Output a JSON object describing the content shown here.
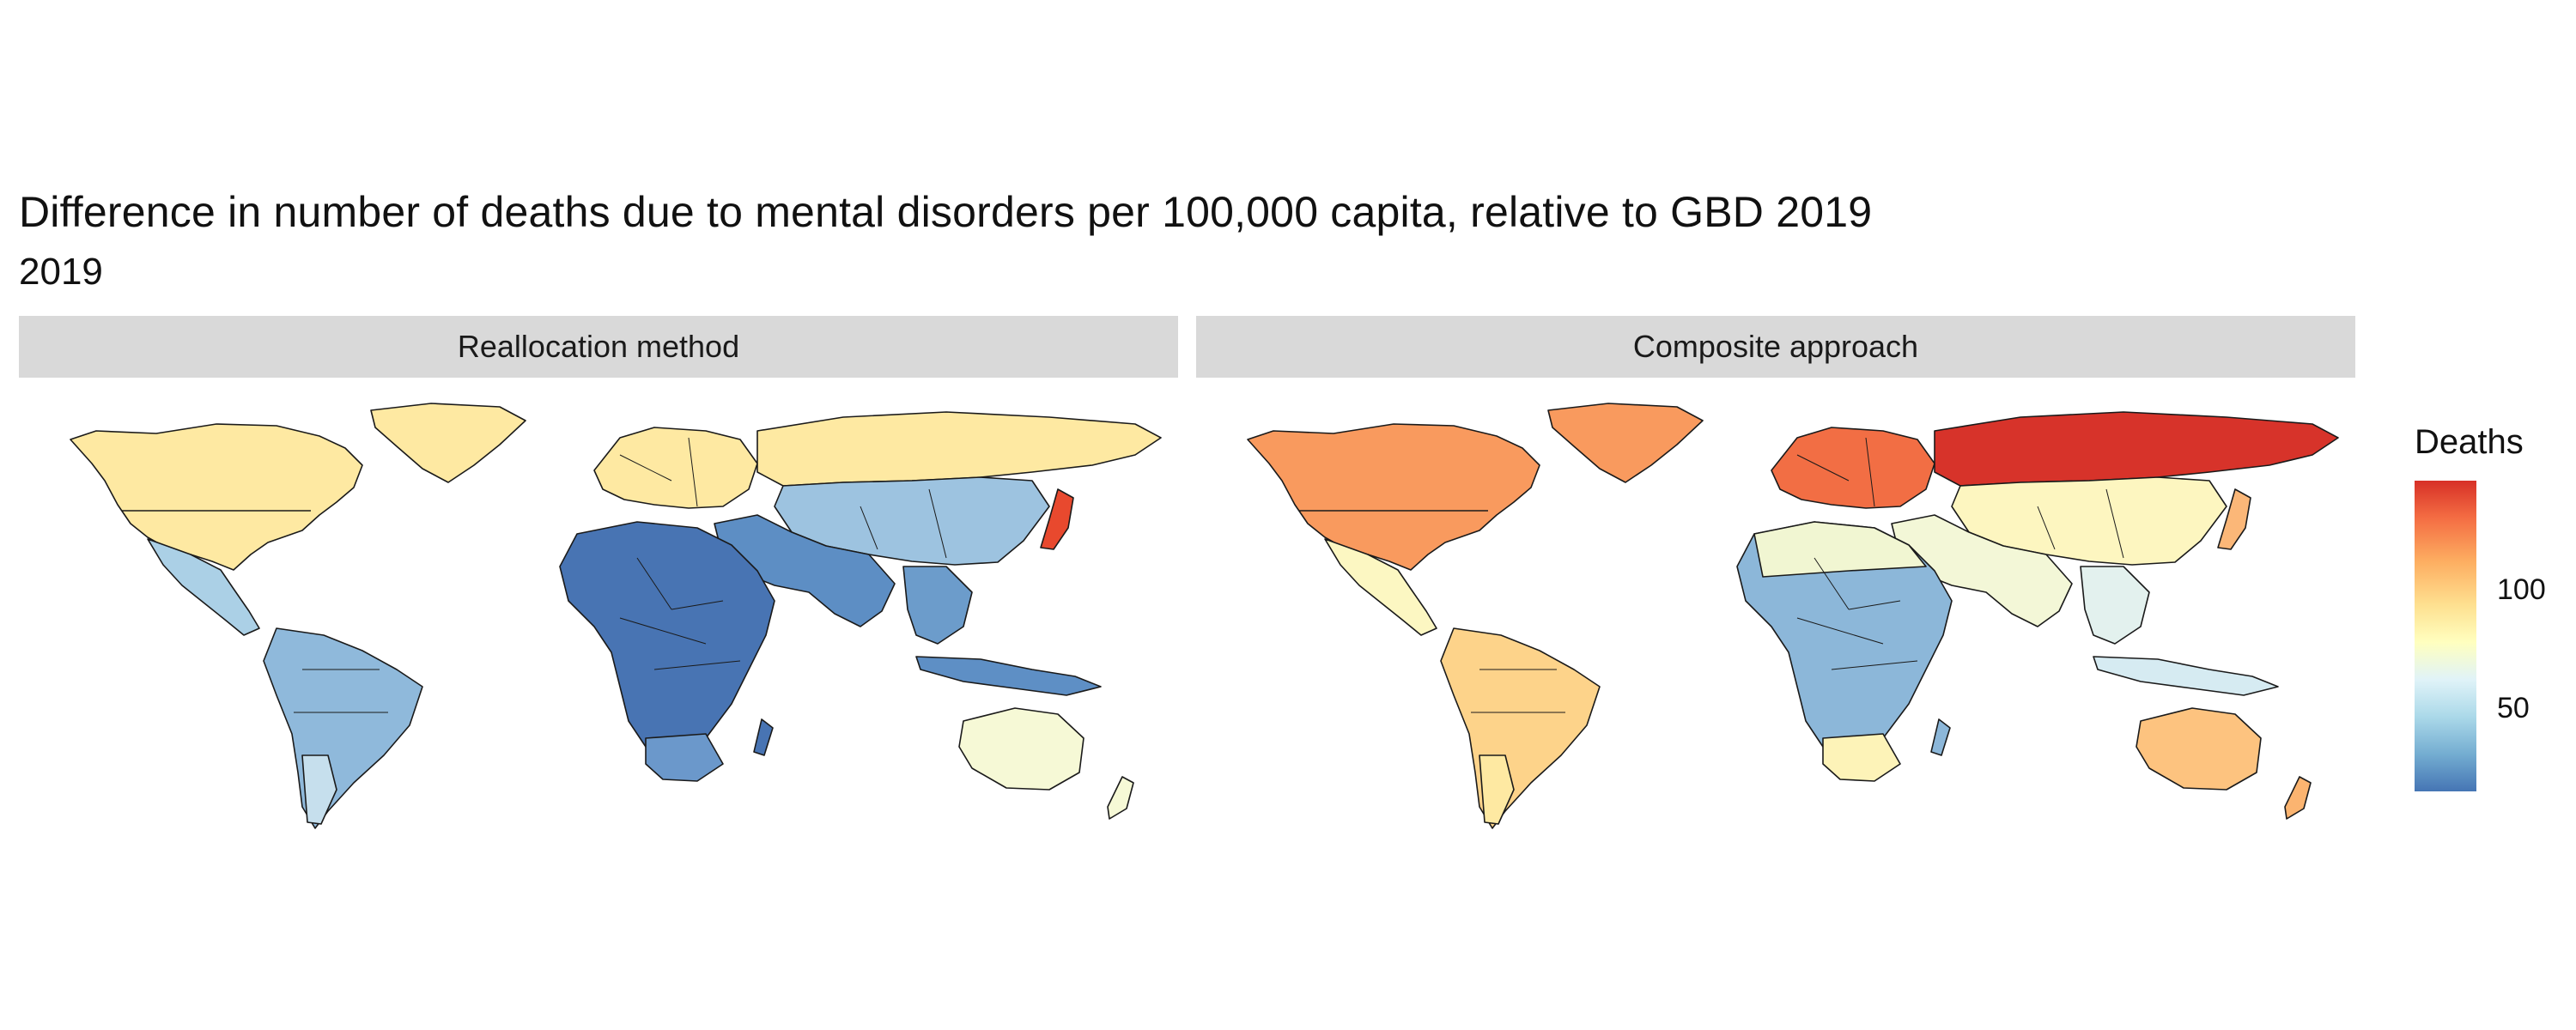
{
  "chart": {
    "title": "Difference in number of deaths due to mental disorders per 100,000 capita, relative to GBD 2019",
    "subtitle": "2019"
  },
  "panels": [
    {
      "label": "Reallocation method"
    },
    {
      "label": "Composite approach"
    }
  ],
  "legend": {
    "title": "Deaths",
    "ticks": [
      "100",
      "50"
    ],
    "scale": [
      "#4575b4",
      "#74add1",
      "#abd9e9",
      "#e0f3f8",
      "#ffffbf",
      "#fee090",
      "#fdae61",
      "#f46d43",
      "#d73027"
    ]
  },
  "colors": {
    "ocean": "#ffffff",
    "border": "#1a1a1a",
    "strip_bg": "#d9d9d9"
  }
}
